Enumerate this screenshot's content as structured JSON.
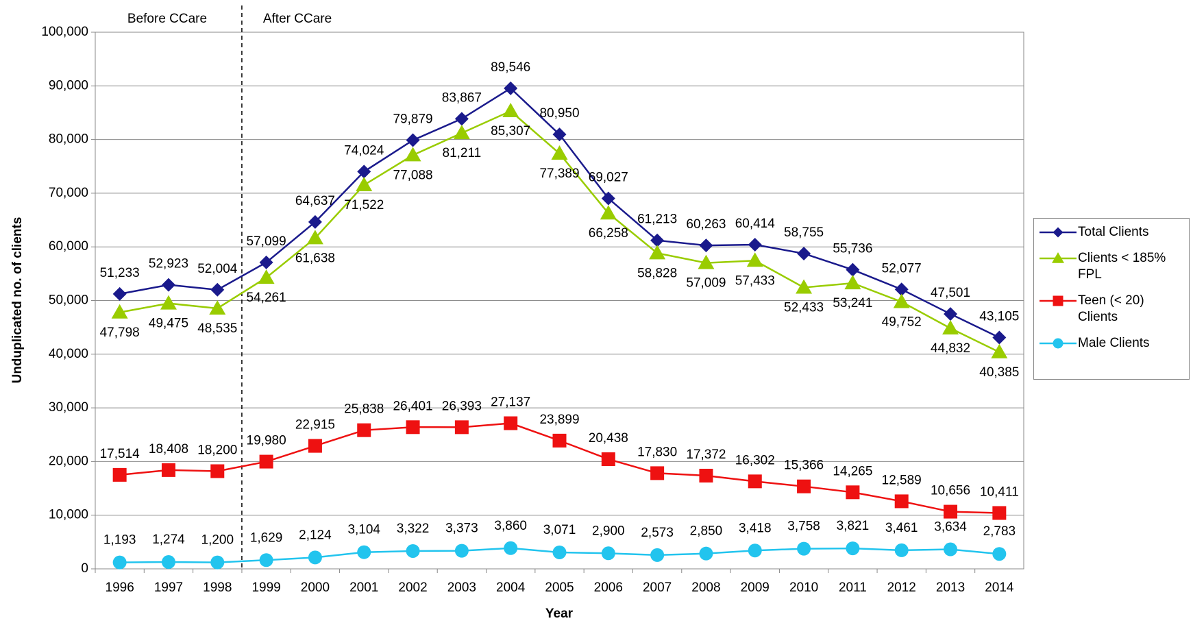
{
  "chart_data": {
    "type": "line",
    "x_label": "Year",
    "y_label": "Unduplicated  no. of clients",
    "annotations": [
      "Before CCare",
      "After CCare"
    ],
    "categories": [
      "1996",
      "1997",
      "1998",
      "1999",
      "2000",
      "2001",
      "2002",
      "2003",
      "2004",
      "2005",
      "2006",
      "2007",
      "2008",
      "2009",
      "2010",
      "2011",
      "2012",
      "2013",
      "2014"
    ],
    "ylim": [
      0,
      100000
    ],
    "yticks": [
      0,
      {
        "value": 10000,
        "label": "10,000"
      },
      {
        "value": 20000,
        "label": "20,000"
      },
      {
        "value": 30000,
        "label": "30,000"
      },
      {
        "value": 40000,
        "label": "40,000"
      },
      {
        "value": 50000,
        "label": "50,000"
      },
      {
        "value": 60000,
        "label": "60,000"
      },
      {
        "value": 70000,
        "label": "70,000"
      },
      {
        "value": 80000,
        "label": "80,000"
      },
      {
        "value": 90000,
        "label": "90,000"
      },
      {
        "value": 100000,
        "label": "100,000"
      }
    ],
    "grid": true,
    "legend": "right",
    "series": [
      {
        "name": "Total Clients",
        "color": "#1a1a8c",
        "marker": "diamond",
        "values": [
          51233,
          52923,
          52004,
          57099,
          64637,
          74024,
          79879,
          83867,
          89546,
          80950,
          69027,
          61213,
          60263,
          60414,
          58755,
          55736,
          52077,
          47501,
          43105
        ],
        "value_labels": [
          "51,233",
          "52,923",
          "52,004",
          "57,099",
          "64,637",
          "74,024",
          "79,879",
          "83,867",
          "89,546",
          "80,950",
          "69,027",
          "61,213",
          "60,263",
          "60,414",
          "58,755",
          "55,736",
          "52,077",
          "47,501",
          "43,105"
        ]
      },
      {
        "name": "Clients < 185% FPL",
        "color": "#99cc00",
        "marker": "triangle",
        "values": [
          47798,
          49475,
          48535,
          54261,
          61638,
          71522,
          77088,
          81211,
          85307,
          77389,
          66258,
          58828,
          57009,
          57433,
          52433,
          53241,
          49752,
          44832,
          40385
        ],
        "value_labels": [
          "47,798",
          "49,475",
          "48,535",
          "54,261",
          "61,638",
          "71,522",
          "77,088",
          "81,211",
          "85,307",
          "77,389",
          "66,258",
          "58,828",
          "57,009",
          "57,433",
          "52,433",
          "53,241",
          "49,752",
          "44,832",
          "40,385"
        ]
      },
      {
        "name": "Teen (< 20) Clients",
        "color": "#ee1111",
        "marker": "square",
        "values": [
          17514,
          18408,
          18200,
          19980,
          22915,
          25838,
          26401,
          26393,
          27137,
          23899,
          20438,
          17830,
          17372,
          16302,
          15366,
          14265,
          12589,
          10656,
          10411
        ],
        "value_labels": [
          "17,514",
          "18,408",
          "18,200",
          "19,980",
          "22,915",
          "25,838",
          "26,401",
          "26,393",
          "27,137",
          "23,899",
          "20,438",
          "17,830",
          "17,372",
          "16,302",
          "15,366",
          "14,265",
          "12,589",
          "10,656",
          "10,411"
        ]
      },
      {
        "name": "Male Clients",
        "color": "#22c4ee",
        "marker": "circle",
        "values": [
          1193,
          1274,
          1200,
          1629,
          2124,
          3104,
          3322,
          3373,
          3860,
          3071,
          2900,
          2573,
          2850,
          3418,
          3758,
          3821,
          3461,
          3634,
          2783
        ],
        "value_labels": [
          "1,193",
          "1,274",
          "1,200",
          "1,629",
          "2,124",
          "3,104",
          "3,322",
          "3,373",
          "3,860",
          "3,071",
          "2,900",
          "2,573",
          "2,850",
          "3,418",
          "3,758",
          "3,821",
          "3,461",
          "3,634",
          "2,783"
        ]
      }
    ]
  }
}
